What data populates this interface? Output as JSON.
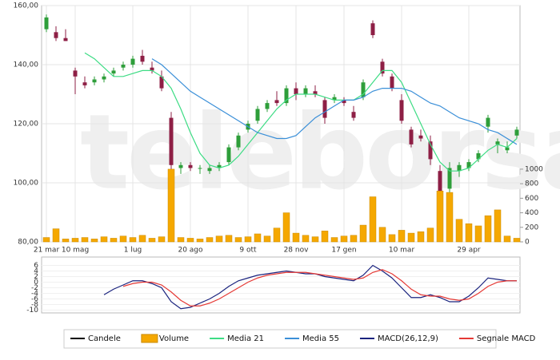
{
  "chart_data": [
    {
      "type": "candlestick",
      "watermark": "teleborsa",
      "grid": true,
      "x": [
        "21 mar",
        null,
        null,
        "10 mag",
        null,
        null,
        null,
        null,
        null,
        "1 lug",
        null,
        null,
        null,
        null,
        null,
        "20 ago",
        null,
        null,
        null,
        null,
        null,
        "9 ott",
        null,
        null,
        null,
        null,
        "28 nov",
        null,
        null,
        null,
        null,
        "17 gen",
        null,
        null,
        null,
        null,
        null,
        "10 mar",
        null,
        null,
        null,
        null,
        null,
        null,
        "29 apr",
        null,
        null,
        null,
        null,
        null
      ],
      "ylim": [
        80,
        160
      ],
      "yticks": [
        {
          "value": 80,
          "label": "80,00"
        },
        {
          "value": 100,
          "label": "100,00"
        },
        {
          "value": 120,
          "label": "120,00"
        },
        {
          "value": 140,
          "label": "140,00"
        },
        {
          "value": 160,
          "label": "160,00"
        }
      ],
      "y2lim": [
        0,
        3250
      ],
      "y2ticks": [
        0,
        200,
        400,
        600,
        800,
        1000
      ],
      "series": [
        {
          "name": "Candele",
          "color": "#000000",
          "up_color": "#2e9e3a",
          "down_color": "#8e1f45",
          "open": [
            152,
            151,
            149,
            138,
            134,
            134,
            135,
            137,
            139,
            140,
            143,
            139,
            136,
            122,
            105,
            106,
            105,
            104,
            105,
            107,
            112,
            118,
            121,
            125,
            128,
            127,
            132,
            130,
            131,
            128,
            128,
            128,
            124,
            129,
            154,
            141,
            136,
            128,
            118,
            116,
            114,
            104,
            98,
            104,
            105,
            108,
            119,
            113,
            111,
            116
          ],
          "high": [
            157,
            153,
            152,
            139,
            136,
            136,
            137,
            139,
            141,
            143,
            145,
            141,
            138,
            124,
            107,
            107,
            106,
            106,
            107,
            113,
            117,
            121,
            126,
            128,
            131,
            133,
            134,
            133,
            133,
            129,
            130,
            129,
            126,
            135,
            155,
            142,
            137,
            130,
            119,
            118,
            116,
            106,
            107,
            107,
            108,
            111,
            123,
            115,
            114,
            119
          ],
          "low": [
            151,
            148,
            148,
            130,
            132,
            133,
            134,
            136,
            138,
            139,
            140,
            137,
            131,
            103,
            103,
            104,
            103,
            103,
            104,
            106,
            111,
            117,
            120,
            124,
            126,
            126,
            128,
            129,
            129,
            120,
            127,
            126,
            121,
            128,
            149,
            136,
            131,
            120,
            112,
            114,
            106,
            93,
            96,
            102,
            104,
            107,
            117,
            110,
            110,
            115
          ],
          "close": [
            156,
            149,
            148,
            136,
            133,
            135,
            136,
            138,
            140,
            142,
            141,
            138,
            132,
            106,
            106,
            105,
            105,
            105,
            106,
            112,
            116,
            120,
            125,
            127,
            127,
            132,
            130,
            132,
            130,
            122,
            129,
            127,
            122,
            134,
            150,
            137,
            132,
            121,
            113,
            115,
            108,
            96,
            105,
            106,
            107,
            110,
            122,
            114,
            112,
            118
          ]
        },
        {
          "name": "Volume",
          "type": "bar",
          "axis": "y2",
          "color": "#f5a800",
          "values": [
            60,
            180,
            40,
            50,
            60,
            40,
            70,
            50,
            80,
            60,
            90,
            50,
            70,
            1000,
            60,
            50,
            40,
            60,
            80,
            90,
            60,
            70,
            110,
            80,
            190,
            400,
            120,
            90,
            70,
            150,
            60,
            80,
            90,
            230,
            620,
            200,
            100,
            160,
            120,
            140,
            190,
            700,
            680,
            310,
            250,
            220,
            360,
            440,
            80,
            50
          ]
        },
        {
          "name": "Media 21",
          "type": "line",
          "color": "#3ddc84",
          "values": [
            null,
            null,
            null,
            null,
            144,
            142,
            139,
            136,
            136,
            137,
            138,
            138,
            136,
            132,
            125,
            117,
            110,
            106,
            105,
            106,
            109,
            113,
            117,
            121,
            125,
            128,
            130,
            130,
            130,
            129,
            128,
            128,
            128,
            130,
            134,
            138,
            138,
            134,
            127,
            120,
            113,
            107,
            104,
            104,
            105,
            108,
            111,
            113,
            112,
            115
          ]
        },
        {
          "name": "Media 55",
          "type": "line",
          "color": "#3a8fd8",
          "values": [
            null,
            null,
            null,
            null,
            null,
            null,
            null,
            null,
            null,
            null,
            null,
            142,
            140,
            137,
            134,
            131,
            129,
            127,
            125,
            123,
            121,
            119,
            117,
            116,
            115,
            115,
            116,
            119,
            122,
            124,
            126,
            128,
            128,
            129,
            131,
            132,
            132,
            132,
            131,
            129,
            127,
            126,
            124,
            122,
            121,
            120,
            118,
            117,
            115,
            113
          ]
        }
      ]
    },
    {
      "type": "line",
      "grid": true,
      "ylim": [
        -11,
        9
      ],
      "yticks": [
        6,
        4,
        2,
        0,
        -2,
        -4,
        -6,
        -8,
        -10
      ],
      "series": [
        {
          "name": "MACD(26,12,9)",
          "color": "#1a237e",
          "values": [
            null,
            null,
            null,
            null,
            null,
            null,
            -4.5,
            -2.5,
            -1,
            0.5,
            0.5,
            -0.5,
            -2,
            -7,
            -9.5,
            -9,
            -7.5,
            -6,
            -4,
            -1.5,
            0.5,
            1.5,
            2.5,
            3,
            3.5,
            4,
            3.5,
            3,
            3,
            2,
            1.5,
            1,
            0.5,
            2.5,
            6,
            4,
            1.5,
            -2,
            -5.5,
            -5.5,
            -4.5,
            -5.5,
            -7,
            -7,
            -5,
            -2,
            1.5,
            1,
            0.5,
            0.5
          ]
        },
        {
          "name": "Segnale MACD",
          "color": "#e53935",
          "values": [
            null,
            null,
            null,
            null,
            null,
            null,
            null,
            null,
            -1.5,
            -0.5,
            0,
            0,
            -1,
            -3.5,
            -6.5,
            -8.5,
            -8.5,
            -7.5,
            -6,
            -4,
            -2,
            0,
            1.5,
            2.5,
            3,
            3.5,
            3.5,
            3.5,
            3,
            2.5,
            2,
            1.5,
            1,
            1.5,
            3.5,
            4.5,
            3,
            0.5,
            -2.5,
            -4.5,
            -5,
            -5,
            -6,
            -6.5,
            -6,
            -4,
            -1.5,
            0,
            0.5,
            0.5
          ]
        }
      ]
    }
  ]
}
